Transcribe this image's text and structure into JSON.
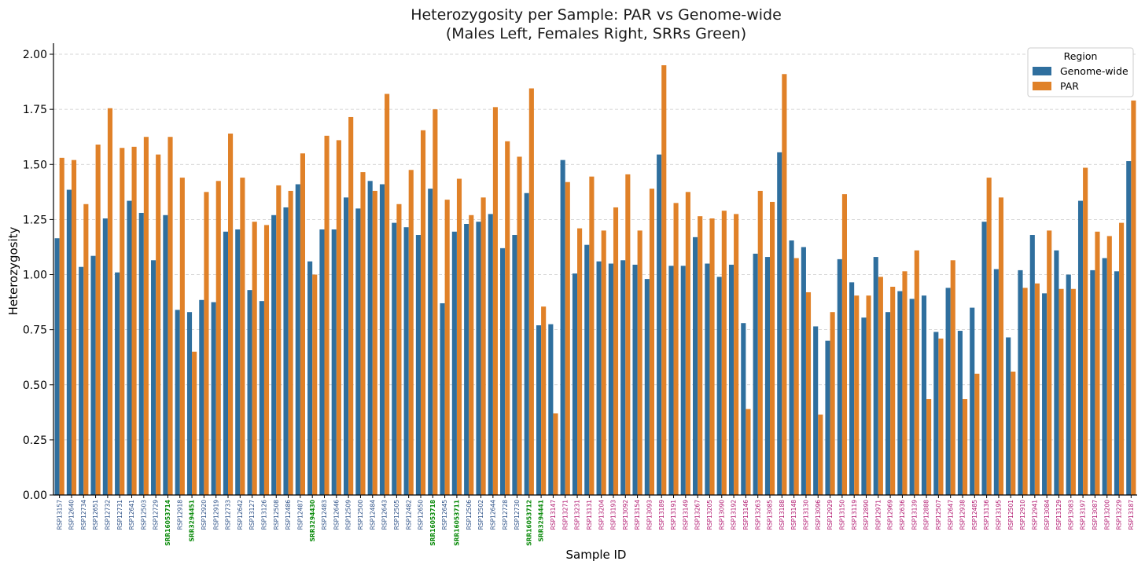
{
  "chart_data": {
    "type": "bar",
    "title": "Heterozygosity per Sample: PAR vs Genome-wide",
    "subtitle": "(Males Left, Females Right, SRRs Green)",
    "xlabel": "Sample ID",
    "ylabel": "Heterozygosity",
    "ylim": [
      0,
      2.05
    ],
    "yticks": [
      "0.00",
      "0.25",
      "0.50",
      "0.75",
      "1.00",
      "1.25",
      "1.50",
      "1.75",
      "2.00"
    ],
    "grid": "horizontal dashed",
    "legend": {
      "title": "Region",
      "placement": "top-right",
      "entries": [
        "Genome-wide",
        "PAR"
      ]
    },
    "colors": {
      "genome_wide": "#2f6f9e",
      "par": "#e08128",
      "male_label": "#2b4f86",
      "female_label": "#b0156e",
      "srr_label": "#0a8a0a"
    },
    "categories": [
      "RSP13157",
      "RSP12640",
      "RSP12734",
      "RSP12651",
      "RSP12732",
      "RSP12731",
      "RSP12641",
      "RSP12503",
      "RSP12729",
      "SRR16053714",
      "RSP12918",
      "SRR3294451",
      "RSP12920",
      "RSP12919",
      "RSP12733",
      "RSP12642",
      "RSP13127",
      "RSP13126",
      "RSP12508",
      "RSP12486",
      "RSP12487",
      "SRR3294430",
      "RSP12483",
      "RSP12646",
      "RSP12509",
      "RSP12500",
      "RSP12484",
      "RSP12643",
      "RSP12505",
      "RSP12482",
      "RSP12650",
      "SRR16053718",
      "RSP12645",
      "SRR16053711",
      "RSP12506",
      "RSP12502",
      "RSP12644",
      "RSP12728",
      "RSP12730",
      "SRR16053712",
      "SRR3294441",
      "RSP13147",
      "RSP13271",
      "RSP13231",
      "RSP13131",
      "RSP13204",
      "RSP13193",
      "RSP13092",
      "RSP13154",
      "RSP13093",
      "RSP13189",
      "RSP13191",
      "RSP13149",
      "RSP13267",
      "RSP13205",
      "RSP13090",
      "RSP13192",
      "RSP13146",
      "RSP13263",
      "RSP13085",
      "RSP13188",
      "RSP13148",
      "RSP13130",
      "RSP13096",
      "RSP12929",
      "RSP13150",
      "RSP13119",
      "RSP12890",
      "RSP12971",
      "RSP12969",
      "RSP12636",
      "RSP13139",
      "RSP12888",
      "RSP12507",
      "RSP12647",
      "RSP12938",
      "RSP12485",
      "RSP13136",
      "RSP13195",
      "RSP12501",
      "RSP12910",
      "RSP12941",
      "RSP13084",
      "RSP13129",
      "RSP13083",
      "RSP13197",
      "RSP13087",
      "RSP13200",
      "RSP13229",
      "RSP13187"
    ],
    "label_groups": [
      "male",
      "male",
      "male",
      "male",
      "male",
      "male",
      "male",
      "male",
      "male",
      "srr",
      "male",
      "srr",
      "male",
      "male",
      "male",
      "male",
      "male",
      "male",
      "male",
      "male",
      "male",
      "srr",
      "male",
      "male",
      "male",
      "male",
      "male",
      "male",
      "male",
      "male",
      "male",
      "srr",
      "male",
      "srr",
      "male",
      "male",
      "male",
      "male",
      "male",
      "srr",
      "srr",
      "female",
      "female",
      "female",
      "female",
      "female",
      "female",
      "female",
      "female",
      "female",
      "female",
      "female",
      "female",
      "female",
      "female",
      "female",
      "female",
      "female",
      "female",
      "female",
      "female",
      "female",
      "female",
      "female",
      "female",
      "female",
      "female",
      "female",
      "female",
      "female",
      "female",
      "female",
      "female",
      "female",
      "female",
      "female",
      "female",
      "female",
      "female",
      "female",
      "female",
      "female",
      "female",
      "female",
      "female",
      "female",
      "female",
      "female",
      "female",
      "female"
    ],
    "series": [
      {
        "name": "Genome-wide",
        "values": [
          1.165,
          1.385,
          1.035,
          1.085,
          1.255,
          1.01,
          1.335,
          1.28,
          1.065,
          1.27,
          0.84,
          0.83,
          0.885,
          0.875,
          1.195,
          1.205,
          0.93,
          0.88,
          1.27,
          1.305,
          1.41,
          1.06,
          1.205,
          1.205,
          1.35,
          1.3,
          1.425,
          1.41,
          1.235,
          1.215,
          1.18,
          1.39,
          0.87,
          1.195,
          1.23,
          1.24,
          1.275,
          1.12,
          1.18,
          1.37,
          0.77,
          0.775,
          1.52,
          1.005,
          1.135,
          1.06,
          1.05,
          1.065,
          1.045,
          0.98,
          1.545,
          1.04,
          1.04,
          1.17,
          1.05,
          0.99,
          1.045,
          0.78,
          1.095,
          1.08,
          1.555,
          1.155,
          1.125,
          0.765,
          0.7,
          1.07,
          0.965,
          0.805,
          1.08,
          0.83,
          0.925,
          0.89,
          0.905,
          0.74,
          0.94,
          0.745,
          0.85,
          1.24,
          1.025,
          0.715,
          1.02,
          1.18,
          0.915,
          1.11,
          1.0,
          1.335,
          1.02,
          1.075,
          1.015,
          1.515
        ]
      },
      {
        "name": "PAR",
        "values": [
          1.53,
          1.52,
          1.32,
          1.59,
          1.755,
          1.575,
          1.58,
          1.625,
          1.545,
          1.625,
          1.44,
          0.65,
          1.375,
          1.425,
          1.64,
          1.44,
          1.24,
          1.225,
          1.405,
          1.38,
          1.55,
          1.0,
          1.63,
          1.61,
          1.715,
          1.465,
          1.38,
          1.82,
          1.32,
          1.475,
          1.655,
          1.75,
          1.34,
          1.435,
          1.27,
          1.35,
          1.76,
          1.605,
          1.535,
          1.845,
          0.855,
          0.37,
          1.42,
          1.21,
          1.445,
          1.2,
          1.305,
          1.455,
          1.2,
          1.39,
          1.95,
          1.325,
          1.375,
          1.265,
          1.255,
          1.29,
          1.275,
          0.39,
          1.38,
          1.33,
          1.91,
          1.075,
          0.92,
          0.365,
          0.83,
          1.365,
          0.905,
          0.905,
          0.99,
          0.945,
          1.015,
          1.11,
          0.435,
          0.71,
          1.065,
          0.435,
          0.55,
          1.44,
          1.35,
          0.56,
          0.94,
          0.96,
          1.2,
          0.935,
          0.935,
          1.485,
          1.195,
          1.175,
          1.235,
          1.79
        ]
      }
    ]
  }
}
